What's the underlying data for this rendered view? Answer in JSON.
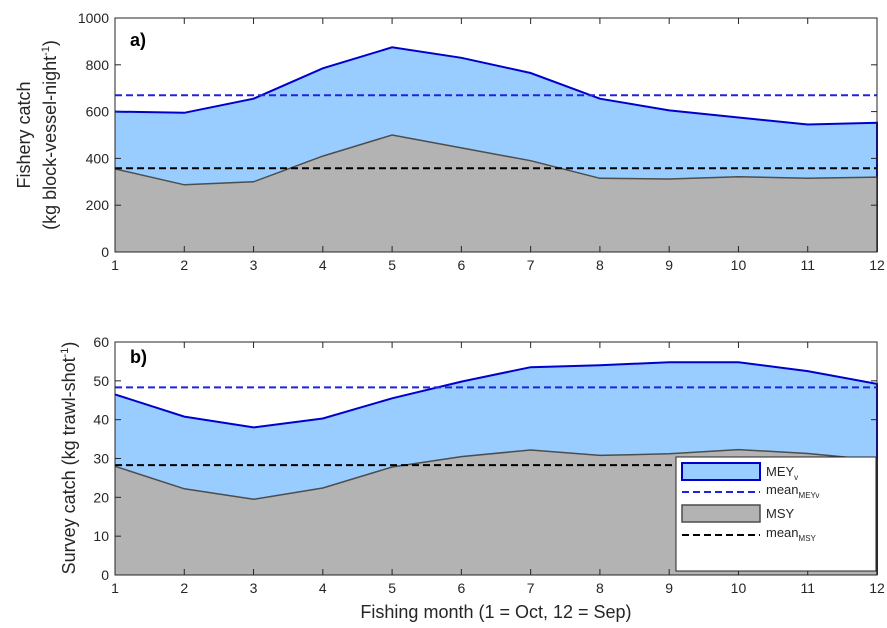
{
  "colors": {
    "mey_fill": "#99ccff",
    "mey_line": "#0000cc",
    "msy_fill": "#b3b3b3",
    "msy_line": "#4d4d4d",
    "mean_mey": "#2222dd",
    "mean_msy": "#000000"
  },
  "xlabel": "Fishing month (1 = Oct, 12 = Sep)",
  "legend": {
    "placement": "inside lower-right of panel b",
    "mey_main": "MEY",
    "mey_sub": "v",
    "mean_mey_main": "mean",
    "mean_mey_sub": "MEYv",
    "msy_main": "MSY",
    "mean_msy_main": "mean",
    "mean_msy_sub": "MSY"
  },
  "chart_data": [
    {
      "type": "area",
      "panel_label": "a)",
      "ylabel_line1": "Fishery catch",
      "ylabel_line2_main": "(kg block-vessel-night",
      "ylabel_line2_sup": "-1",
      "ylabel_line2_end": ")",
      "x": [
        1,
        2,
        3,
        4,
        5,
        6,
        7,
        8,
        9,
        10,
        11,
        12
      ],
      "xlim": [
        1,
        12
      ],
      "ylim": [
        0,
        1000
      ],
      "yticks": [
        0,
        200,
        400,
        600,
        800,
        1000
      ],
      "series": [
        {
          "key": "mey",
          "values": [
            600,
            595,
            655,
            785,
            875,
            830,
            765,
            655,
            605,
            575,
            545,
            552
          ]
        },
        {
          "key": "msy",
          "values": [
            355,
            287,
            300,
            410,
            500,
            445,
            390,
            315,
            312,
            322,
            315,
            320
          ]
        }
      ],
      "mean_lines": {
        "mey": 670,
        "msy": 358
      }
    },
    {
      "type": "area",
      "panel_label": "b)",
      "ylabel_line1": "Survey catch (kg trawl-shot",
      "ylabel_line1_sup": "-1",
      "ylabel_line1_end": ")",
      "x": [
        1,
        2,
        3,
        4,
        5,
        6,
        7,
        8,
        9,
        10,
        11,
        12
      ],
      "xlim": [
        1,
        12
      ],
      "ylim": [
        0,
        60
      ],
      "yticks": [
        0,
        10,
        20,
        30,
        40,
        50,
        60
      ],
      "series": [
        {
          "key": "mey",
          "values": [
            46.5,
            40.8,
            38.0,
            40.3,
            45.5,
            49.8,
            53.5,
            54.0,
            54.8,
            54.8,
            52.5,
            49.2
          ]
        },
        {
          "key": "msy",
          "values": [
            28.0,
            22.2,
            19.5,
            22.4,
            27.8,
            30.5,
            32.2,
            30.8,
            31.2,
            32.3,
            31.3,
            29.6
          ]
        }
      ],
      "mean_lines": {
        "mey": 48.3,
        "msy": 28.3
      }
    }
  ]
}
